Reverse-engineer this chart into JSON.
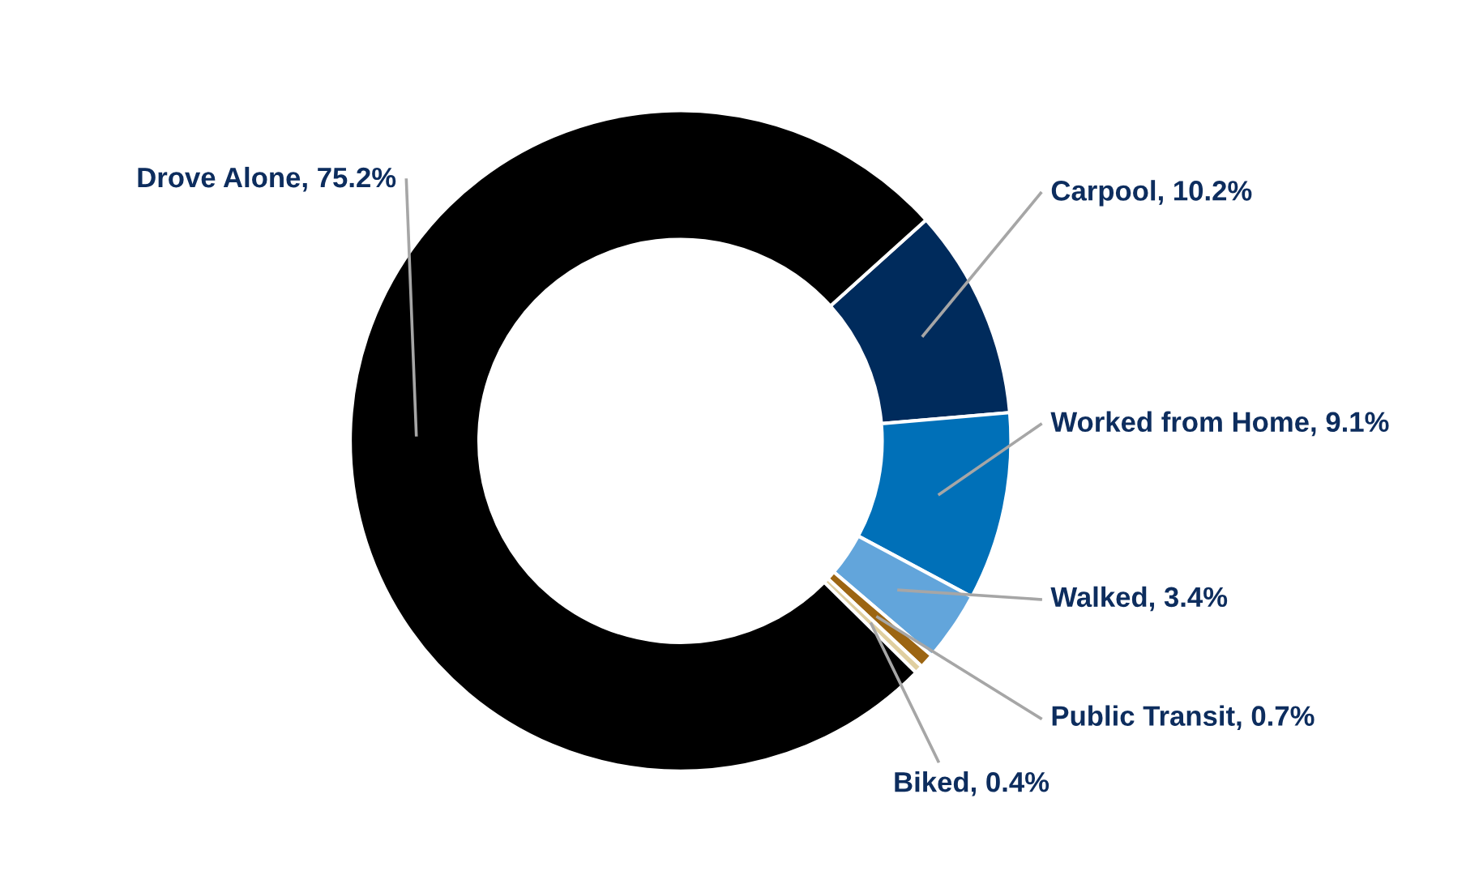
{
  "chart_data": {
    "type": "donut",
    "categories": [
      "Carpool",
      "Worked from Home",
      "Walked",
      "Public Transit",
      "Biked",
      "Drove Alone"
    ],
    "values": [
      10.2,
      9.1,
      3.4,
      0.7,
      0.4,
      75.2
    ],
    "value_labels": [
      "10.2%",
      "9.1%",
      "3.4%",
      "0.7%",
      "0.4%",
      "75.2%"
    ],
    "colors": [
      "#002b5c",
      "#0070b8",
      "#62a5db",
      "#9c6512",
      "#e0cfa0",
      "#000000"
    ],
    "legend": false
  }
}
